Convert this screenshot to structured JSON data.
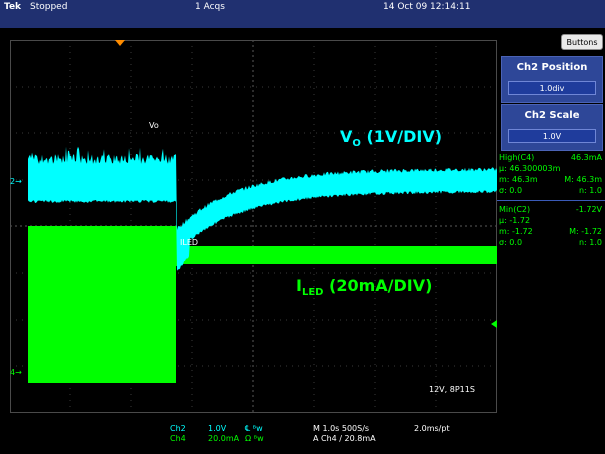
{
  "status_bar": {
    "brand": "Tek",
    "acq_state": "Stopped",
    "acq_count": "1 Acqs",
    "datetime": "14 Oct 09 12:14:11"
  },
  "side_panel": {
    "buttons_label": "Buttons",
    "position_title": "Ch2 Position",
    "position_value": "1.0div",
    "scale_title": "Ch2 Scale",
    "scale_value": "1.0V"
  },
  "measurements": {
    "high": {
      "label": "High(C4)",
      "value": "46.3mA",
      "mean": "μ: 46.300003m",
      "min": "m: 46.3m",
      "max": "M: 46.3m",
      "sigma": "σ: 0.0",
      "count": "n: 1.0"
    },
    "low": {
      "label": "Min(C2)",
      "value": "-1.72V",
      "mean": "μ: -1.72",
      "min": "m: -1.72",
      "max": "M: -1.72",
      "sigma": "σ: 0.0",
      "count": "n: 1.0"
    }
  },
  "annotations": {
    "vo_main": "V",
    "vo_sub": "O",
    "vo_rest": " (1V/DIV)",
    "iled_main": "I",
    "iled_sub": "LED",
    "iled_rest": " (20mA/DIV)",
    "vo_tag": "Vo",
    "iled_tag": "ILED",
    "condition": "12V, 8P11S"
  },
  "channel_markers": {
    "ch2": "2",
    "ch4": "4"
  },
  "bottom_bar": {
    "ch2_label": "Ch2",
    "ch2_scale": "1.0V",
    "ch2_coupling": "℄ ᴮw",
    "ch4_label": "Ch4",
    "ch4_scale": "20.0mA",
    "ch4_coupling": "Ω ᴮw",
    "timebase": "M 1.0s 500S/s",
    "trigger": "A Ch4  ∕ 20.8mA",
    "record": "2.0ms/pt"
  },
  "colors": {
    "ch2": "#00ffff",
    "ch4": "#00ff00",
    "background": "#000000",
    "status_bar": "#203070",
    "panel": "#2e4798",
    "trigger_marker": "#ff8c00"
  }
}
